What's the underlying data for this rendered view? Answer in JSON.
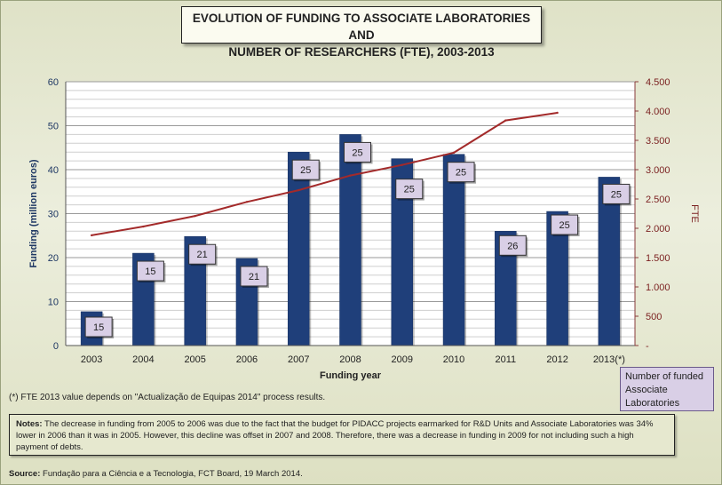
{
  "chart_data": {
    "type": "bar",
    "title_line1": "EVOLUTION OF FUNDING TO ASSOCIATE LABORATORIES AND",
    "title_line2": "NUMBER OF RESEARCHERS (FTE), 2003-2013",
    "xlabel": "Funding year",
    "ylabel": "Funding (million euros)",
    "y2label": "FTE",
    "categories": [
      "2003",
      "2004",
      "2005",
      "2006",
      "2007",
      "2008",
      "2009",
      "2010",
      "2011",
      "2012",
      "2013(*)"
    ],
    "ylim": [
      0,
      60
    ],
    "y_ticks": [
      "0",
      "10",
      "20",
      "30",
      "40",
      "50",
      "60"
    ],
    "y2lim": [
      0,
      4500
    ],
    "y2_ticks": [
      "-",
      "500",
      "1.000",
      "1.500",
      "2.000",
      "2.500",
      "3.000",
      "3.500",
      "4.000",
      "4.500"
    ],
    "grid": true,
    "series": [
      {
        "type": "bar",
        "axis": "left",
        "color": "#1f3f7a",
        "values": [
          7.7,
          21,
          24.8,
          19.8,
          44,
          48,
          42.5,
          43.5,
          26,
          30.5,
          38.3
        ]
      },
      {
        "type": "line",
        "axis": "right",
        "color": "#a32a2a",
        "values": [
          1880,
          2030,
          2210,
          2450,
          2650,
          2900,
          3080,
          3290,
          3840,
          3970,
          null
        ]
      }
    ],
    "bar_labels": [
      "15",
      "15",
      "21",
      "21",
      "25",
      "25",
      "25",
      "25",
      "26",
      "25",
      "25"
    ],
    "bar_label_legend": "Number of funded Associate Laboratories"
  },
  "footnote": "(*) FTE 2013 value depends on \"Actualização de Equipas 2014\" process results.",
  "notes": {
    "label": "Notes:",
    "text": " The decrease in funding from 2005 to 2006 was due to the fact that the budget for PIDACC projects earmarked for R&D Units and Associate Laboratories was 34% lower in 2006 than it was in 2005. However, this decline was offset in 2007 and 2008. Therefore, there was a decrease in funding in 2009 for not including such a high payment of debts."
  },
  "source": {
    "label": "Source:",
    "text": " Fundação para a Ciência e a Tecnologia, FCT Board, 19  March 2014."
  },
  "colors": {
    "bar": "#1f3f7a",
    "line": "#a32a2a",
    "label_box": "#d9cfe6"
  }
}
